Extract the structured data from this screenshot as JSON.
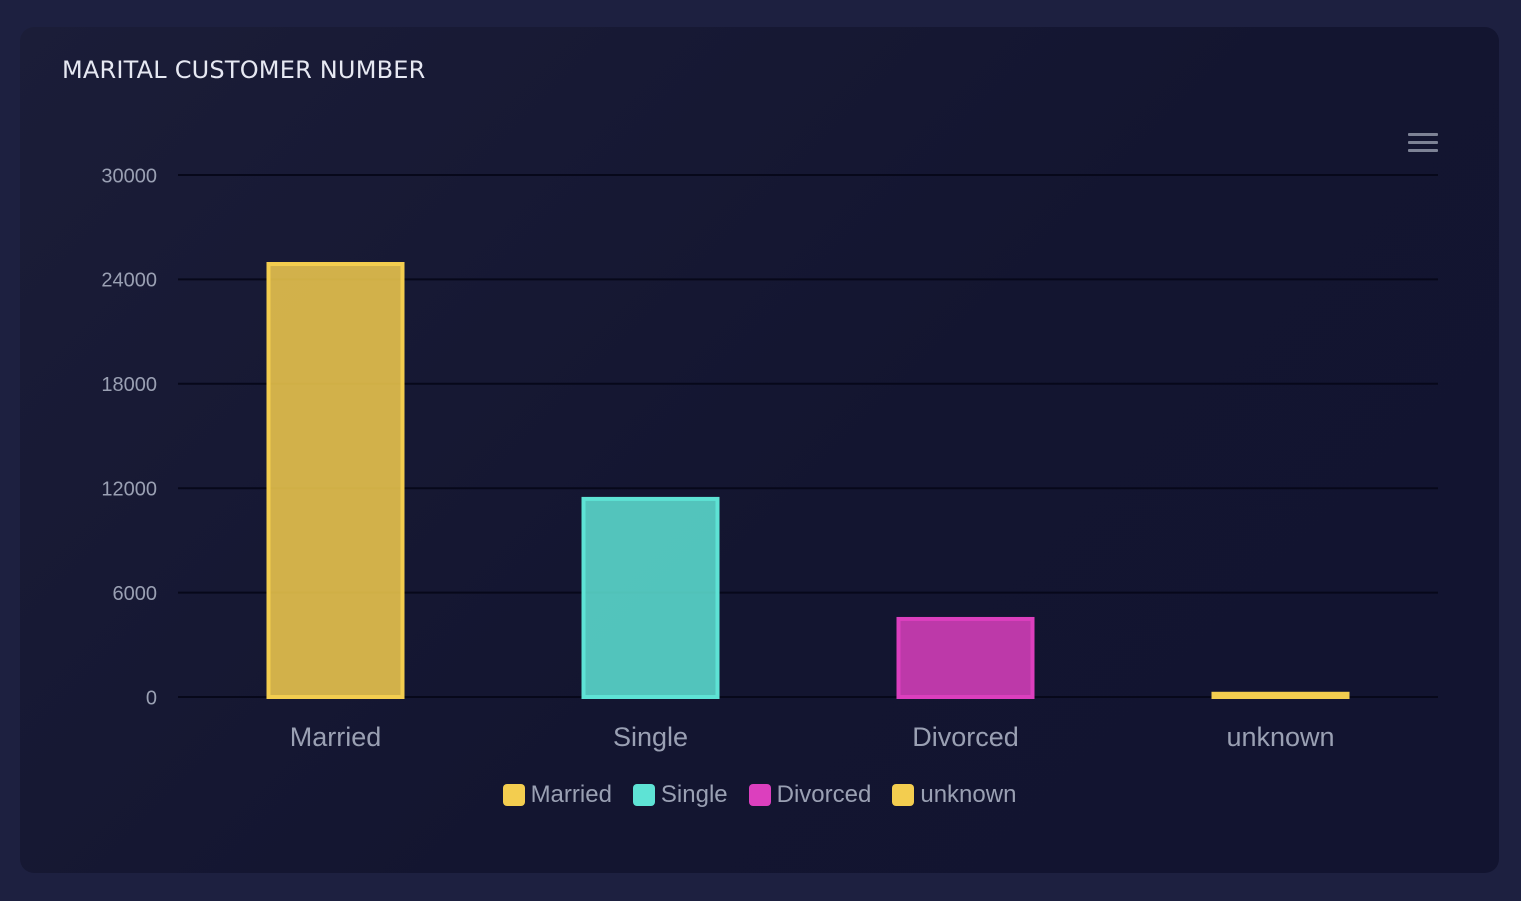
{
  "card": {
    "title": "MARITAL CUSTOMER NUMBER"
  },
  "toolbar": {
    "menu_icon": "hamburger-menu-icon"
  },
  "colors": {
    "page_background": "#1d2040",
    "card_background": "#161833",
    "gridline": "#07081a",
    "axis_text": "#9aa0b3",
    "title_text": "#e6e8f2"
  },
  "chart_data": {
    "type": "bar",
    "title": "MARITAL CUSTOMER NUMBER",
    "xlabel": "",
    "ylabel": "",
    "ylim": [
      0,
      30000
    ],
    "yticks": [
      0,
      6000,
      12000,
      18000,
      24000,
      30000
    ],
    "grid": true,
    "legend_position": "bottom",
    "categories": [
      "Married",
      "Single",
      "Divorced",
      "unknown"
    ],
    "values": [
      25000,
      11500,
      4600,
      300
    ],
    "colors": [
      "#f3cd4f",
      "#5ee3d5",
      "#dc3fbe",
      "#f3cd4f"
    ]
  }
}
